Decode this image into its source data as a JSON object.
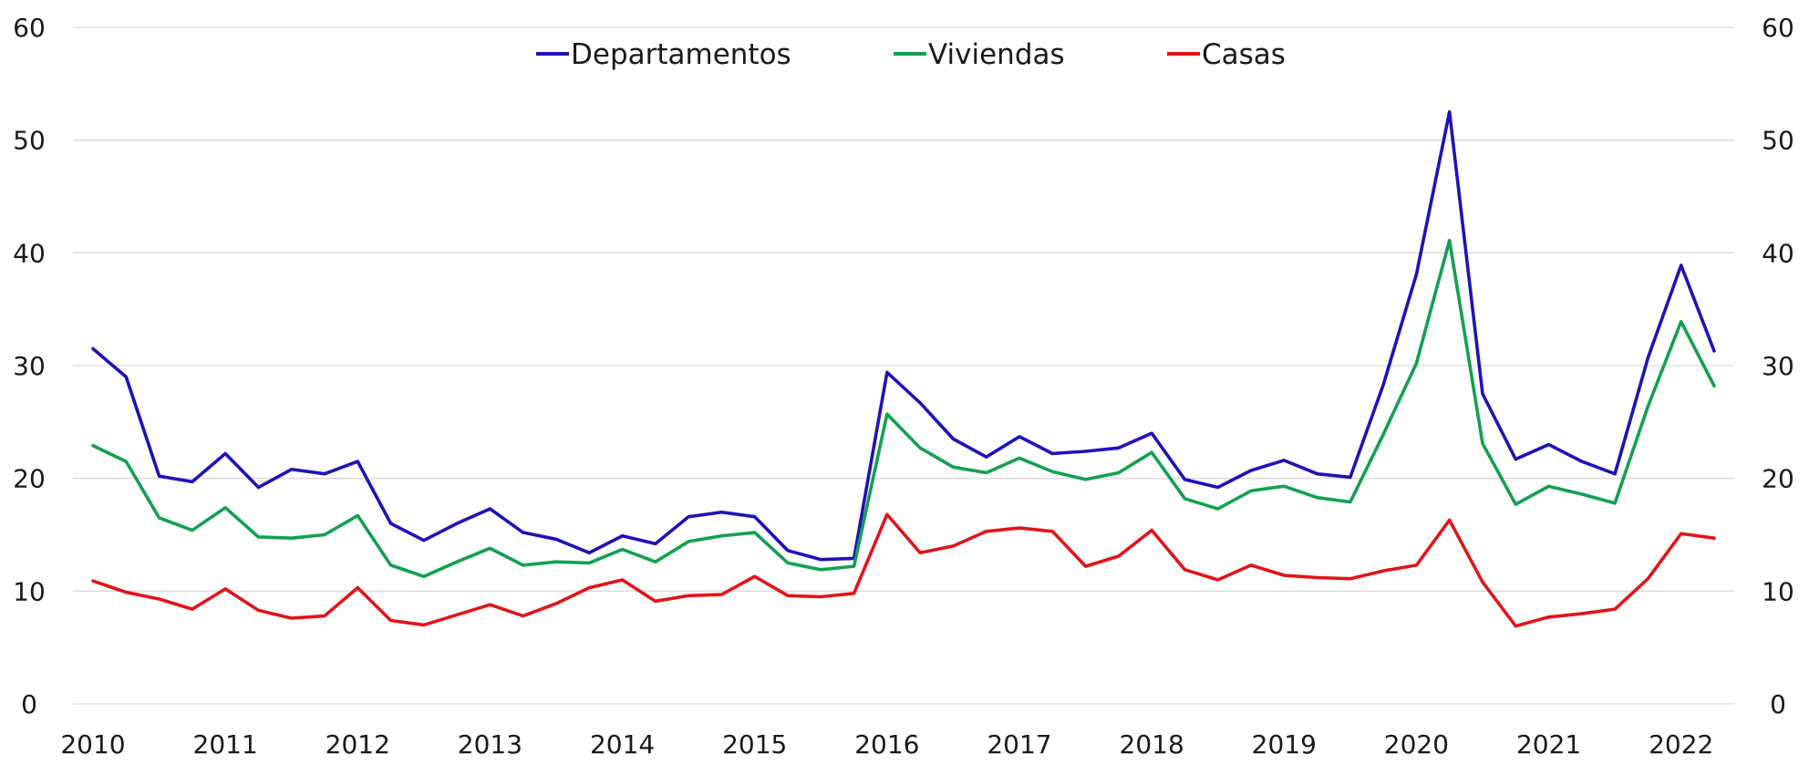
{
  "chart_data": {
    "type": "line",
    "title": "",
    "xlabel": "",
    "ylabel": "",
    "ylim": [
      0,
      60
    ],
    "y_ticks": [
      "0",
      "10",
      "20",
      "30",
      "40",
      "50",
      "60"
    ],
    "x_tick_labels": [
      "2010",
      "2011",
      "2012",
      "2013",
      "2014",
      "2015",
      "2016",
      "2017",
      "2018",
      "2019",
      "2020",
      "2021",
      "2022"
    ],
    "x": [
      2010.0,
      2010.25,
      2010.5,
      2010.75,
      2011.0,
      2011.25,
      2011.5,
      2011.75,
      2012.0,
      2012.25,
      2012.5,
      2012.75,
      2013.0,
      2013.25,
      2013.5,
      2013.75,
      2014.0,
      2014.25,
      2014.5,
      2014.75,
      2015.0,
      2015.25,
      2015.5,
      2015.75,
      2016.0,
      2016.25,
      2016.5,
      2016.75,
      2017.0,
      2017.25,
      2017.5,
      2017.75,
      2018.0,
      2018.25,
      2018.5,
      2018.75,
      2019.0,
      2019.25,
      2019.5,
      2019.75,
      2020.0,
      2020.25,
      2020.5,
      2020.75,
      2021.0,
      2021.25,
      2021.5,
      2021.75,
      2022.0,
      2022.25
    ],
    "x_range": [
      2010.0,
      2022.25
    ],
    "grid": true,
    "dual_y_axis": true,
    "legend_position": "top-center",
    "series": [
      {
        "name": "Departamentos",
        "color": "#1f12b8",
        "values": [
          31.5,
          29.0,
          20.2,
          19.7,
          22.2,
          19.2,
          20.8,
          20.4,
          21.5,
          16.0,
          14.5,
          16.0,
          17.3,
          15.2,
          14.6,
          13.4,
          14.9,
          14.2,
          16.6,
          17.0,
          16.6,
          13.6,
          12.8,
          12.9,
          29.4,
          26.7,
          23.5,
          21.9,
          23.7,
          22.2,
          22.4,
          22.7,
          24.0,
          19.9,
          19.2,
          20.7,
          21.6,
          20.4,
          20.1,
          28.3,
          38.1,
          52.5,
          27.5,
          21.7,
          23.0,
          21.5,
          20.4,
          30.7,
          38.9,
          31.3
        ]
      },
      {
        "name": "Viviendas",
        "color": "#12a052",
        "values": [
          22.9,
          21.5,
          16.5,
          15.4,
          17.4,
          14.8,
          14.7,
          15.0,
          16.7,
          12.3,
          11.3,
          12.6,
          13.8,
          12.3,
          12.6,
          12.5,
          13.7,
          12.6,
          14.4,
          14.9,
          15.2,
          12.5,
          11.9,
          12.2,
          25.7,
          22.7,
          21.0,
          20.5,
          21.8,
          20.6,
          19.9,
          20.5,
          22.3,
          18.2,
          17.3,
          18.9,
          19.3,
          18.3,
          17.9,
          23.9,
          30.2,
          41.1,
          23.1,
          17.7,
          19.3,
          18.6,
          17.8,
          26.4,
          33.9,
          28.2
        ]
      },
      {
        "name": "Casas",
        "color": "#e0141a",
        "values": [
          10.9,
          9.9,
          9.3,
          8.4,
          10.2,
          8.3,
          7.6,
          7.8,
          10.3,
          7.4,
          7.0,
          7.9,
          8.8,
          7.8,
          8.9,
          10.3,
          11.0,
          9.1,
          9.6,
          9.7,
          11.3,
          9.6,
          9.5,
          9.8,
          16.8,
          13.4,
          14.0,
          15.3,
          15.6,
          15.3,
          12.2,
          13.1,
          15.4,
          11.9,
          11.0,
          12.3,
          11.4,
          11.2,
          11.1,
          11.8,
          12.3,
          16.3,
          10.8,
          6.9,
          7.7,
          8.0,
          8.4,
          11.1,
          15.1,
          14.7
        ]
      }
    ]
  }
}
